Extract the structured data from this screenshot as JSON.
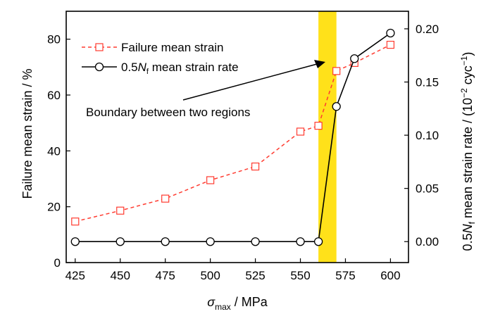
{
  "chart_data": {
    "type": "line",
    "x": [
      425,
      450,
      475,
      500,
      525,
      550,
      560,
      570,
      580,
      600
    ],
    "xlabel_symbol": "σ",
    "xlabel_subscript": "max",
    "xlabel_rest": " / MPa",
    "xlim": [
      420,
      610
    ],
    "xticks": [
      "425",
      "450",
      "475",
      "500",
      "525",
      "550",
      "575",
      "600"
    ],
    "ylabel_left": "Failure mean strain / %",
    "ylim_left": [
      0,
      90
    ],
    "yticks_left": [
      "0",
      "20",
      "40",
      "60",
      "80"
    ],
    "ylabel_right_prefix": "0.5",
    "ylabel_right_N": "N",
    "ylabel_right_sub": "f",
    "ylabel_right_mid": " mean strain rate / (10",
    "ylabel_right_sup1": "−2",
    "ylabel_right_mid2": " cyc",
    "ylabel_right_sup2": "−1",
    "ylabel_right_end": ")",
    "ylim_right": [
      -0.0197,
      0.2165
    ],
    "yticks_right": [
      "0.00",
      "0.05",
      "0.10",
      "0.15",
      "0.20"
    ],
    "series": [
      {
        "name": "Failure mean strain",
        "axis": "left",
        "color": "#ff3b30",
        "line_style": "dashed",
        "marker": "open-square",
        "values": [
          14.7,
          18.6,
          22.9,
          29.5,
          34.4,
          46.9,
          49.0,
          68.6,
          71.5,
          78.0
        ]
      },
      {
        "name_prefix": "0.5",
        "name_N": "N",
        "name_sub": "f",
        "name_rest": " mean strain rate",
        "axis": "right",
        "color": "#000000",
        "line_style": "solid",
        "marker": "open-circle",
        "values": [
          0.0,
          0.0,
          0.0,
          0.0,
          0.0,
          0.0,
          0.0,
          0.127,
          0.172,
          0.196
        ]
      }
    ],
    "boundary_region": {
      "x_start": 560,
      "x_end": 570,
      "color": "#ffe11a"
    },
    "annotation": "Boundary between two regions"
  }
}
